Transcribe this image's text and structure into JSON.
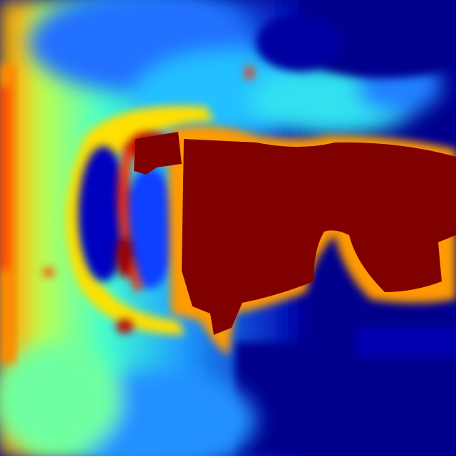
{
  "image": {
    "kind": "jet-colormap heat / saliency map",
    "colormap": [
      "#00008c",
      "#0000ff",
      "#0080ff",
      "#00ffff",
      "#80ff80",
      "#ffff00",
      "#ff8000",
      "#ff0000",
      "#800000"
    ],
    "background_color": "#00008c",
    "hot_region_color": "#800000"
  }
}
